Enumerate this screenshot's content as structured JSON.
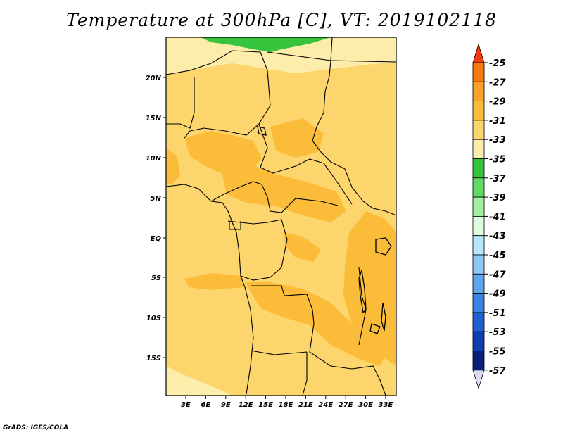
{
  "title": "Temperature at 300hPa [C], VT: 2019102118",
  "footer": "GrADS: IGES/COLA",
  "map": {
    "lat_labels": [
      "20N",
      "15N",
      "10N",
      "5N",
      "EQ",
      "5S",
      "10S",
      "15S"
    ],
    "lon_labels": [
      "3E",
      "6E",
      "9E",
      "12E",
      "15E",
      "18E",
      "21E",
      "24E",
      "27E",
      "30E",
      "33E"
    ]
  },
  "colorbar": {
    "levels": [
      "-25",
      "-27",
      "-29",
      "-31",
      "-33",
      "-35",
      "-37",
      "-39",
      "-41",
      "-43",
      "-45",
      "-47",
      "-49",
      "-51",
      "-53",
      "-55",
      "-57"
    ],
    "colors": {
      "top": "#f03c0e",
      "bins": [
        "#f87a0e",
        "#fba228",
        "#fbbc3a",
        "#fcd66d",
        "#fdedaa",
        "#36c43c",
        "#62db66",
        "#a4efa4",
        "#ddffe0",
        "#b8e6fb",
        "#8cc8f3",
        "#5fa6ec",
        "#3c84e4",
        "#2060d2",
        "#0f3eb0",
        "#0a1f7a"
      ],
      "bottom": "#dcd9f5"
    }
  },
  "colors": {
    "field_main": "#fcd66d",
    "field_warm": "#fbbc3a",
    "field_cool": "#fdedaa",
    "field_green": "#36c43c",
    "borders": "#000000"
  }
}
